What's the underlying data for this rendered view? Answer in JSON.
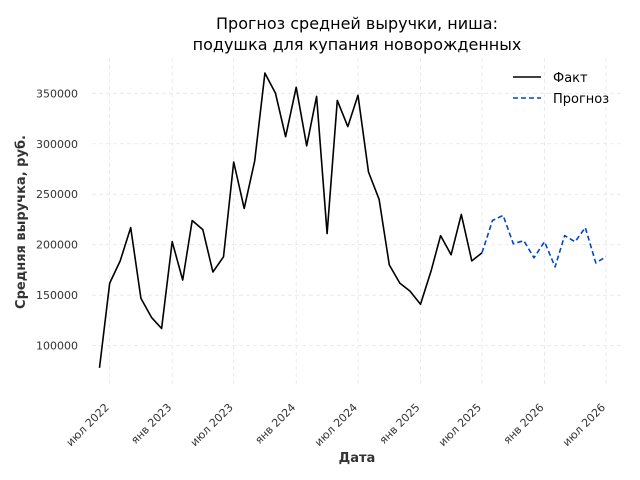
{
  "chart_data": {
    "type": "line",
    "title_line1": "Прогноз средней выручки, ниша:",
    "title_line2": "подушка для купания новорожденных",
    "xlabel": "Дата",
    "ylabel": "Средняя выручка, руб.",
    "ylim": [
      60000,
      385000
    ],
    "xlim": [
      "2022-05-10",
      "2026-08-20"
    ],
    "grid": true,
    "legend_position": "top-right",
    "y_ticks": [
      100000,
      150000,
      200000,
      250000,
      300000,
      350000
    ],
    "y_tick_labels": [
      "100000",
      "150000",
      "200000",
      "250000",
      "300000",
      "350000"
    ],
    "x_ticks": [
      {
        "date": "2022-07-01",
        "label": "июл 2022"
      },
      {
        "date": "2023-01-01",
        "label": "янв 2023"
      },
      {
        "date": "2023-07-01",
        "label": "июл 2023"
      },
      {
        "date": "2024-01-01",
        "label": "янв 2024"
      },
      {
        "date": "2024-07-01",
        "label": "июл 2024"
      },
      {
        "date": "2025-01-01",
        "label": "янв 2025"
      },
      {
        "date": "2025-07-01",
        "label": "июл 2025"
      },
      {
        "date": "2026-01-01",
        "label": "янв 2026"
      },
      {
        "date": "2026-07-01",
        "label": "июл 2026"
      }
    ],
    "series": [
      {
        "name": "Факт",
        "color": "#000000",
        "style": "solid",
        "points": [
          [
            "2022-06-01",
            78000
          ],
          [
            "2022-07-01",
            162000
          ],
          [
            "2022-08-01",
            184000
          ],
          [
            "2022-09-01",
            217000
          ],
          [
            "2022-10-01",
            147000
          ],
          [
            "2022-11-01",
            128000
          ],
          [
            "2022-12-01",
            117000
          ],
          [
            "2023-01-01",
            203000
          ],
          [
            "2023-02-01",
            165000
          ],
          [
            "2023-03-01",
            224000
          ],
          [
            "2023-04-01",
            215000
          ],
          [
            "2023-05-01",
            173000
          ],
          [
            "2023-06-01",
            188000
          ],
          [
            "2023-07-01",
            282000
          ],
          [
            "2023-08-01",
            236000
          ],
          [
            "2023-09-01",
            283000
          ],
          [
            "2023-10-01",
            370000
          ],
          [
            "2023-11-01",
            350000
          ],
          [
            "2023-12-01",
            307000
          ],
          [
            "2024-01-01",
            356000
          ],
          [
            "2024-02-01",
            298000
          ],
          [
            "2024-03-01",
            347000
          ],
          [
            "2024-04-01",
            211000
          ],
          [
            "2024-05-01",
            343000
          ],
          [
            "2024-06-01",
            317000
          ],
          [
            "2024-07-01",
            348000
          ],
          [
            "2024-08-01",
            272000
          ],
          [
            "2024-09-01",
            245000
          ],
          [
            "2024-10-01",
            180000
          ],
          [
            "2024-11-01",
            162000
          ],
          [
            "2024-12-01",
            154000
          ],
          [
            "2025-01-01",
            141000
          ],
          [
            "2025-02-01",
            174000
          ],
          [
            "2025-03-01",
            209000
          ],
          [
            "2025-04-01",
            190000
          ],
          [
            "2025-05-01",
            230000
          ],
          [
            "2025-06-01",
            184000
          ],
          [
            "2025-07-01",
            192000
          ]
        ]
      },
      {
        "name": "Прогноз",
        "color": "#0047cc",
        "style": "dashed",
        "points": [
          [
            "2025-07-01",
            192000
          ],
          [
            "2025-08-01",
            224000
          ],
          [
            "2025-09-01",
            229000
          ],
          [
            "2025-10-01",
            201000
          ],
          [
            "2025-11-01",
            204000
          ],
          [
            "2025-12-01",
            187000
          ],
          [
            "2026-01-01",
            203000
          ],
          [
            "2026-02-01",
            178000
          ],
          [
            "2026-03-01",
            209000
          ],
          [
            "2026-04-01",
            203000
          ],
          [
            "2026-05-01",
            217000
          ],
          [
            "2026-06-01",
            182000
          ],
          [
            "2026-07-01",
            188000
          ]
        ]
      }
    ]
  }
}
